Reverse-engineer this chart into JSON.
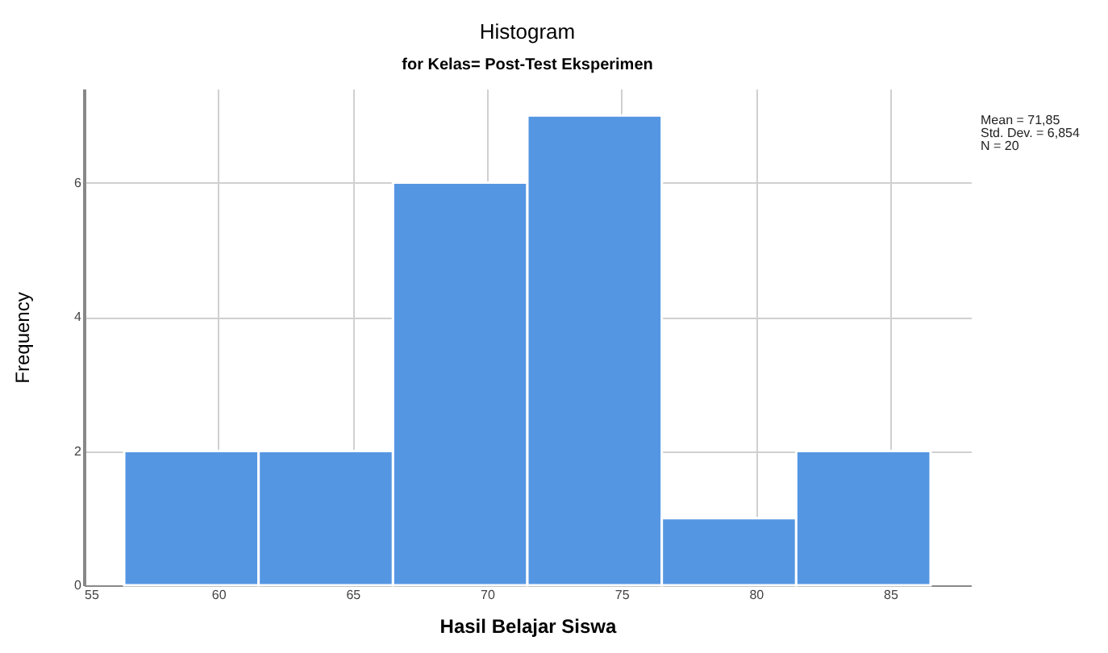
{
  "chart_data": {
    "type": "histogram",
    "title": "Histogram",
    "subtitle": "for Kelas= Post-Test Eksperimen",
    "xlabel": "Hasil Belajar Siswa",
    "ylabel": "Frequency",
    "bins": [
      56.5,
      61.5,
      66.5,
      71.5,
      76.5,
      81.5,
      86.5
    ],
    "values": [
      2,
      2,
      6,
      7,
      1,
      2
    ],
    "color": "#5596e3",
    "xlim": [
      55,
      88
    ],
    "xticks": [
      55,
      60,
      65,
      70,
      75,
      80,
      85
    ],
    "ylim": [
      0,
      7.4
    ],
    "yticks": [
      0,
      2,
      4,
      6
    ],
    "grid": true,
    "annotations": [
      "Mean = 71,85",
      "Std. Dev. = 6,854",
      "N = 20"
    ]
  }
}
